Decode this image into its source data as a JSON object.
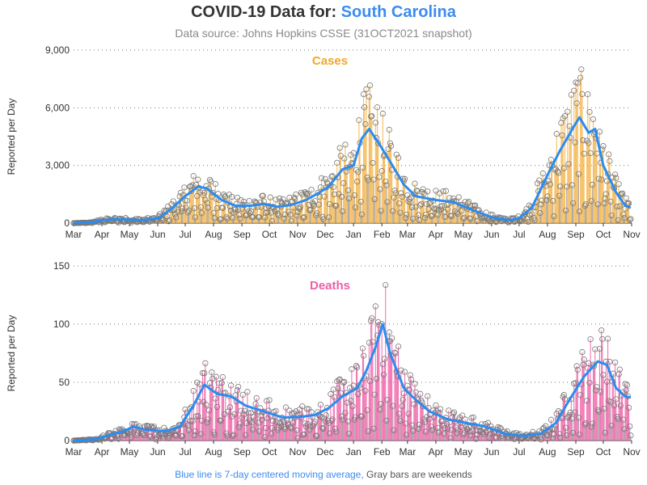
{
  "title": {
    "prefix": "COVID-19 Data for:",
    "state": "South Carolina"
  },
  "subtitle": "Data source: Johns Hopkins CSSE (31OCT2021 snapshot)",
  "footnote": {
    "blue_text": "Blue line is 7-day centered moving average,",
    "gray_text": "Gray bars are weekends"
  },
  "colors": {
    "cases_bar": "#f5b347",
    "deaths_bar": "#ee5fa7",
    "moving_average": "#2b8cf0",
    "weekend": "#999999",
    "accent": "#3c8cf0"
  },
  "chart_data": [
    {
      "type": "bar",
      "panel_label": "Cases",
      "label_color": "#f5a623",
      "ylabel": "Reported per Day",
      "ylim": [
        0,
        9000
      ],
      "yticks": [
        0,
        3000,
        6000,
        9000
      ],
      "ytick_labels": [
        "0",
        "3,000",
        "6,000",
        "9,000"
      ],
      "grid": "horizontal-dotted",
      "xticks": [
        "Mar",
        "Apr",
        "May",
        "Jun",
        "Jul",
        "Aug",
        "Sep",
        "Oct",
        "Nov",
        "Dec",
        "Jan",
        "Feb",
        "Mar",
        "Apr",
        "May",
        "Jun",
        "Jul",
        "Aug",
        "Sep",
        "Oct",
        "Nov"
      ],
      "moving_average_keypoints": [
        [
          "2020-03-01",
          0
        ],
        [
          "2020-03-20",
          30
        ],
        [
          "2020-04-01",
          150
        ],
        [
          "2020-04-15",
          200
        ],
        [
          "2020-05-01",
          180
        ],
        [
          "2020-05-15",
          150
        ],
        [
          "2020-06-01",
          250
        ],
        [
          "2020-06-15",
          700
        ],
        [
          "2020-07-01",
          1400
        ],
        [
          "2020-07-15",
          1900
        ],
        [
          "2020-07-25",
          1800
        ],
        [
          "2020-08-10",
          1200
        ],
        [
          "2020-08-25",
          900
        ],
        [
          "2020-09-10",
          900
        ],
        [
          "2020-09-25",
          1000
        ],
        [
          "2020-10-10",
          850
        ],
        [
          "2020-10-25",
          950
        ],
        [
          "2020-11-10",
          1200
        ],
        [
          "2020-11-25",
          1600
        ],
        [
          "2020-12-05",
          1900
        ],
        [
          "2020-12-20",
          2800
        ],
        [
          "2021-01-01",
          3000
        ],
        [
          "2021-01-10",
          4400
        ],
        [
          "2021-01-18",
          4900
        ],
        [
          "2021-01-28",
          4200
        ],
        [
          "2021-02-10",
          3200
        ],
        [
          "2021-02-25",
          2000
        ],
        [
          "2021-03-10",
          1400
        ],
        [
          "2021-04-01",
          1200
        ],
        [
          "2021-04-20",
          1100
        ],
        [
          "2021-05-10",
          700
        ],
        [
          "2021-06-01",
          300
        ],
        [
          "2021-06-20",
          150
        ],
        [
          "2021-07-01",
          250
        ],
        [
          "2021-07-15",
          800
        ],
        [
          "2021-08-01",
          2500
        ],
        [
          "2021-08-15",
          3800
        ],
        [
          "2021-09-01",
          5200
        ],
        [
          "2021-09-05",
          5500
        ],
        [
          "2021-09-15",
          4700
        ],
        [
          "2021-09-22",
          4900
        ],
        [
          "2021-10-01",
          3000
        ],
        [
          "2021-10-15",
          1600
        ],
        [
          "2021-10-25",
          900
        ],
        [
          "2021-10-31",
          800
        ]
      ]
    },
    {
      "type": "bar",
      "panel_label": "Deaths",
      "label_color": "#ee5fa7",
      "ylabel": "Reported per Day",
      "ylim": [
        0,
        150
      ],
      "yticks": [
        0,
        50,
        100,
        150
      ],
      "ytick_labels": [
        "0",
        "50",
        "100",
        "150"
      ],
      "grid": "horizontal-dotted",
      "xticks": [
        "Mar",
        "Apr",
        "May",
        "Jun",
        "Jul",
        "Aug",
        "Sep",
        "Oct",
        "Nov",
        "Dec",
        "Jan",
        "Feb",
        "Mar",
        "Apr",
        "May",
        "Jun",
        "Jul",
        "Aug",
        "Sep",
        "Oct",
        "Nov"
      ],
      "moving_average_keypoints": [
        [
          "2020-03-01",
          0
        ],
        [
          "2020-03-25",
          1
        ],
        [
          "2020-04-10",
          5
        ],
        [
          "2020-04-25",
          8
        ],
        [
          "2020-05-05",
          12
        ],
        [
          "2020-05-20",
          9
        ],
        [
          "2020-06-10",
          8
        ],
        [
          "2020-06-25",
          12
        ],
        [
          "2020-07-10",
          30
        ],
        [
          "2020-07-22",
          48
        ],
        [
          "2020-08-05",
          40
        ],
        [
          "2020-08-20",
          38
        ],
        [
          "2020-09-05",
          30
        ],
        [
          "2020-09-25",
          25
        ],
        [
          "2020-10-15",
          20
        ],
        [
          "2020-11-01",
          20
        ],
        [
          "2020-11-20",
          22
        ],
        [
          "2020-12-05",
          28
        ],
        [
          "2020-12-20",
          38
        ],
        [
          "2021-01-05",
          45
        ],
        [
          "2021-01-15",
          60
        ],
        [
          "2021-01-25",
          80
        ],
        [
          "2021-02-02",
          100
        ],
        [
          "2021-02-10",
          75
        ],
        [
          "2021-02-25",
          45
        ],
        [
          "2021-03-10",
          35
        ],
        [
          "2021-03-25",
          25
        ],
        [
          "2021-04-15",
          18
        ],
        [
          "2021-05-05",
          15
        ],
        [
          "2021-05-25",
          12
        ],
        [
          "2021-06-15",
          6
        ],
        [
          "2021-07-05",
          4
        ],
        [
          "2021-07-25",
          6
        ],
        [
          "2021-08-10",
          15
        ],
        [
          "2021-08-25",
          35
        ],
        [
          "2021-09-10",
          55
        ],
        [
          "2021-09-25",
          68
        ],
        [
          "2021-10-05",
          65
        ],
        [
          "2021-10-15",
          45
        ],
        [
          "2021-10-25",
          38
        ],
        [
          "2021-10-31",
          37
        ]
      ]
    }
  ]
}
